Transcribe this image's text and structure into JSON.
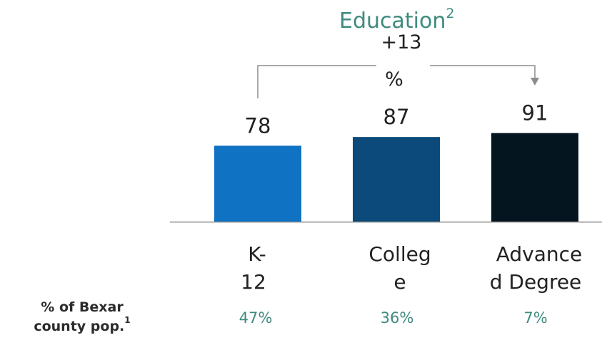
{
  "chart_data": {
    "type": "bar",
    "title": "Education",
    "title_superscript": "2",
    "categories_lines": [
      [
        "K-",
        "12"
      ],
      [
        "Colleg",
        "e"
      ],
      [
        "Advance",
        "d Degree"
      ]
    ],
    "values": [
      78,
      87,
      91
    ],
    "value_labels": [
      "78",
      "87",
      "91"
    ],
    "ylim": [
      0,
      100
    ],
    "bar_colors": [
      "#1072c2",
      "#0b4a7a",
      "#041520"
    ],
    "annotation": {
      "line1": "+13",
      "line2": "%",
      "from_category": 0,
      "to_category": 2
    },
    "secondary_row": {
      "label_lines": [
        "% of Bexar",
        "county pop."
      ],
      "label_superscript": "1",
      "values": [
        "47%",
        "36%",
        "7%"
      ]
    }
  },
  "colors": {
    "title": "#3f8a7e",
    "secondary_values": "#3f8a7e",
    "axis": "#8c8c8c",
    "bracket": "#8c8c8c"
  }
}
